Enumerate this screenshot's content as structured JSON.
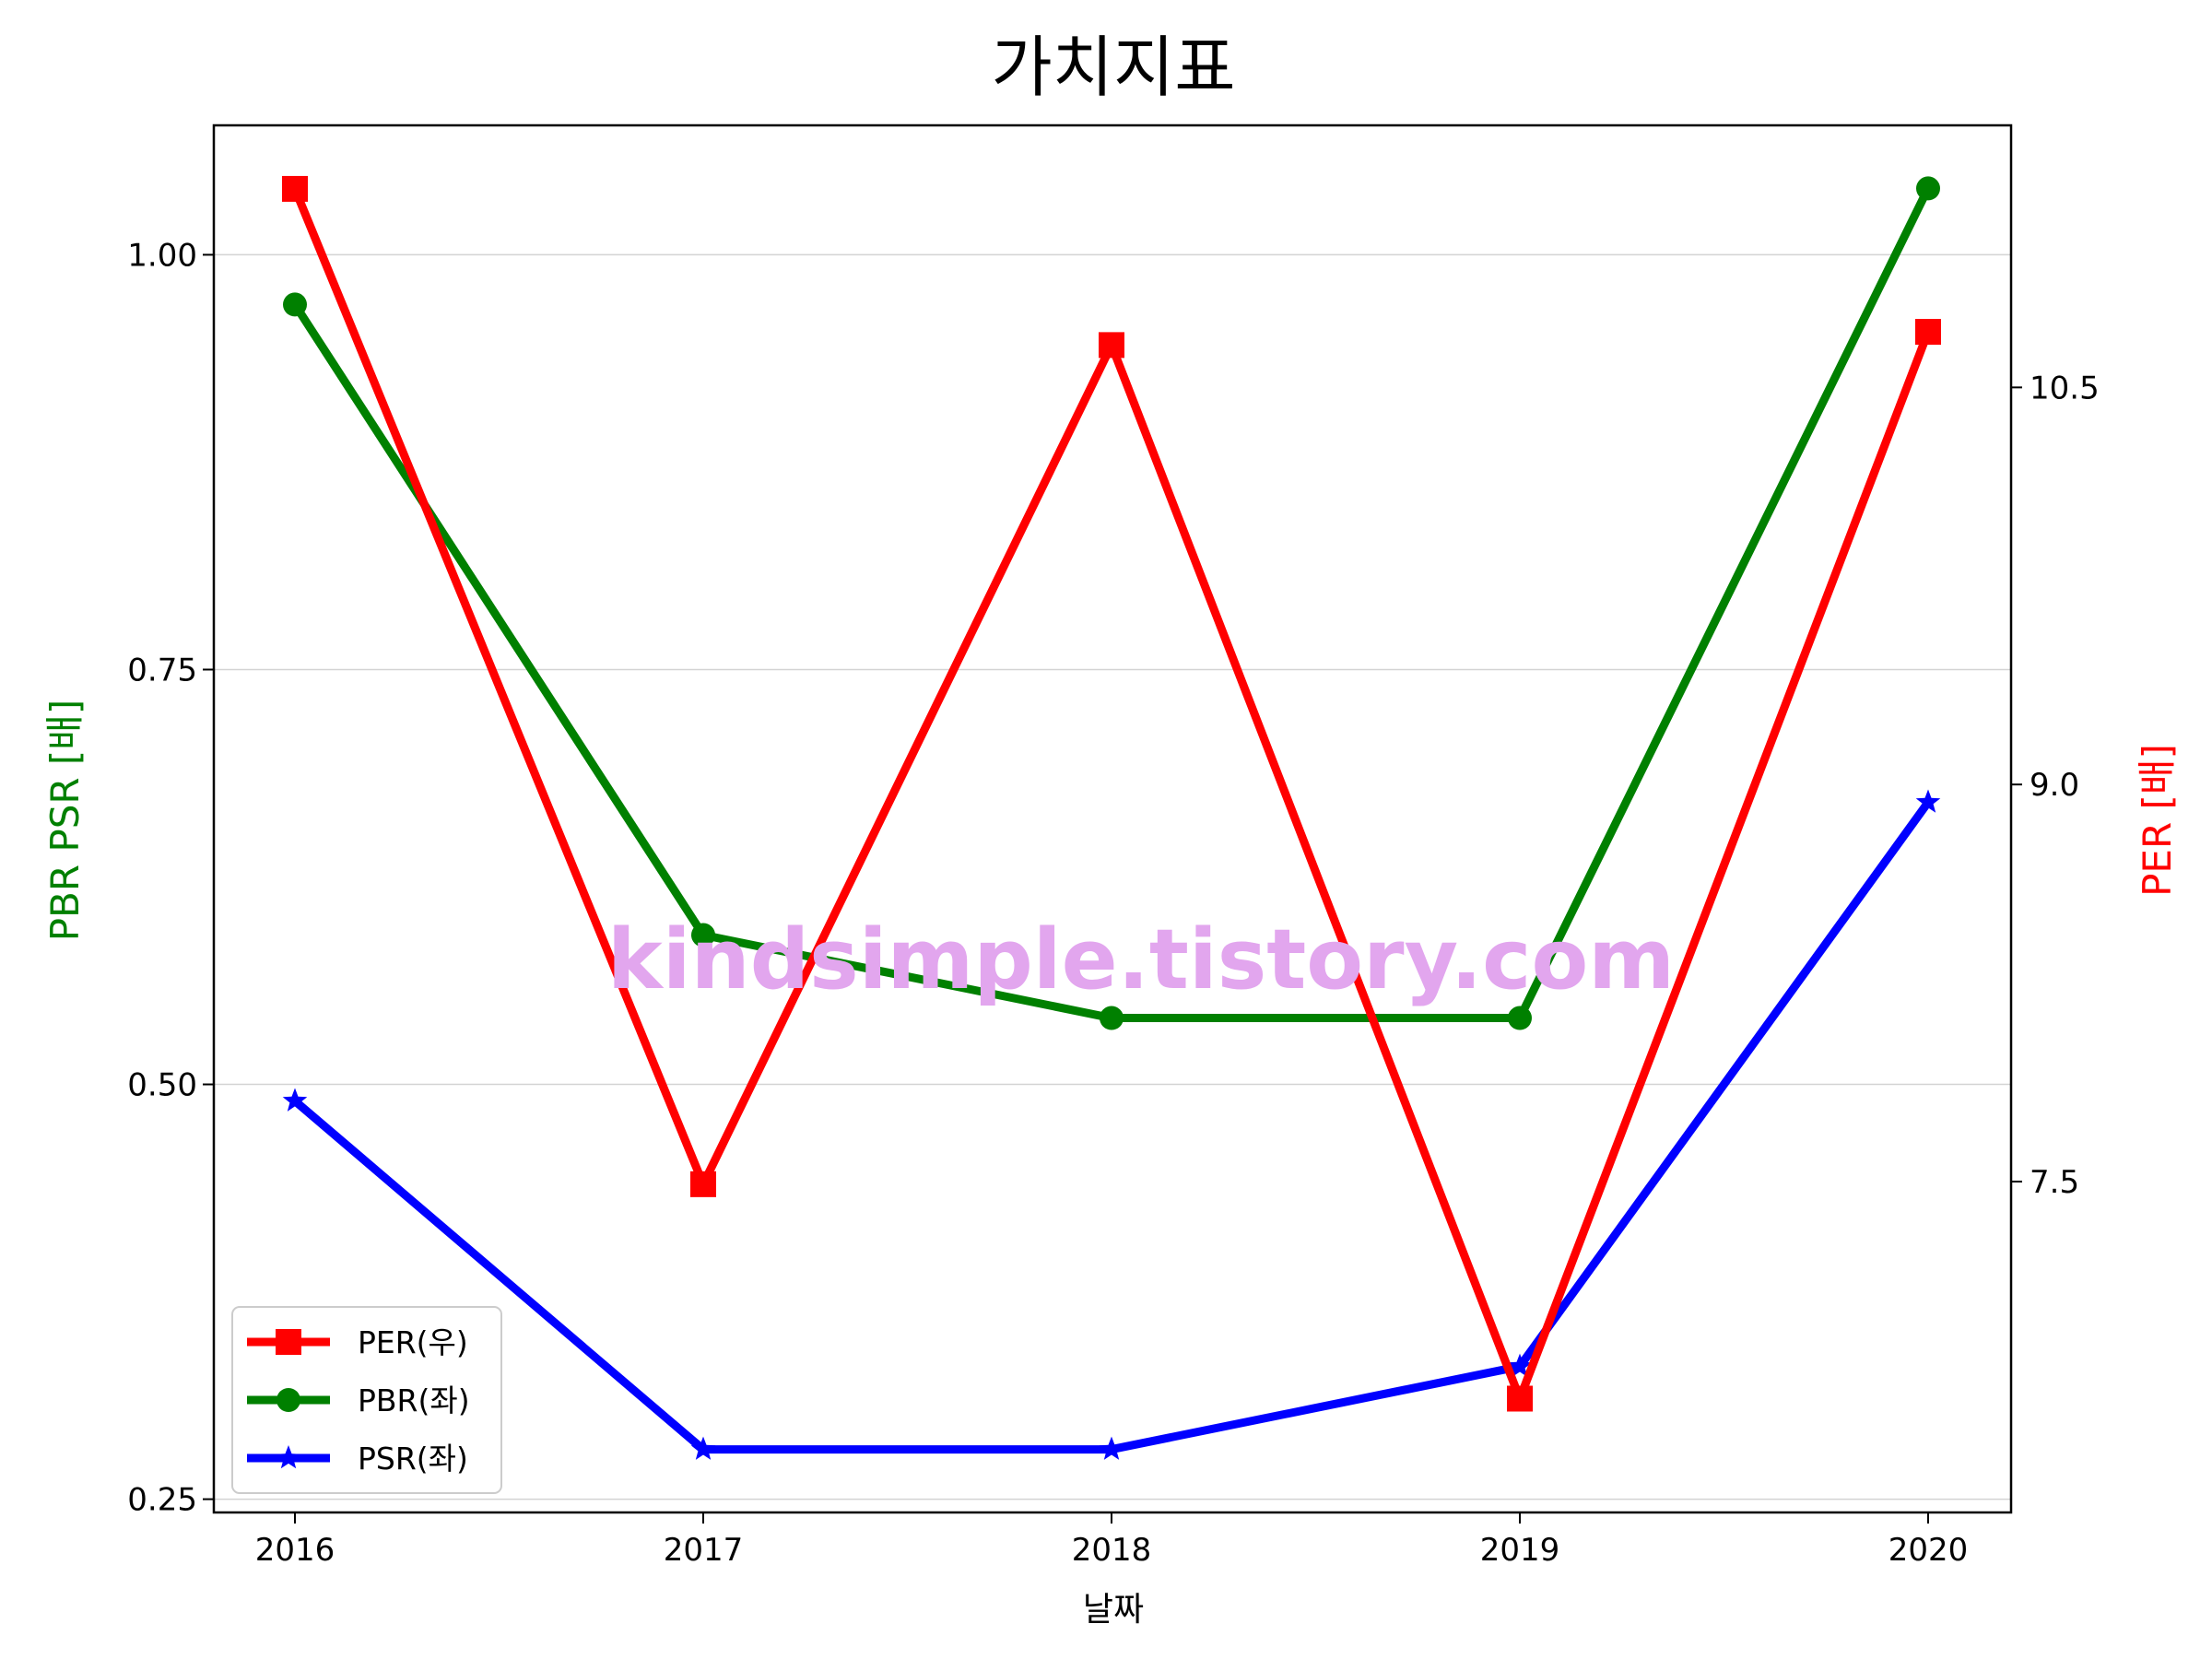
{
  "chart_data": {
    "type": "line",
    "title": "가치지표",
    "xlabel": "날짜",
    "ylabel_left": "PBR PSR [배]",
    "ylabel_right": "PER [배]",
    "categories": [
      "2016",
      "2017",
      "2018",
      "2019",
      "2020"
    ],
    "left_axis": {
      "ylim": [
        0.242,
        1.078
      ],
      "ticks": [
        0.25,
        0.5,
        0.75,
        1.0
      ],
      "tick_labels": [
        "0.25",
        "0.50",
        "0.75",
        "1.00"
      ]
    },
    "right_axis": {
      "ylim": [
        6.25,
        11.49
      ],
      "ticks": [
        7.5,
        9.0,
        10.5
      ],
      "tick_labels": [
        "7.5",
        "9.0",
        "10.5"
      ]
    },
    "series": [
      {
        "name": "PER(우)",
        "axis": "right",
        "color": "#ff0000",
        "marker": "square",
        "values": [
          11.25,
          7.49,
          10.66,
          6.68,
          10.71
        ]
      },
      {
        "name": "PBR(좌)",
        "axis": "left",
        "color": "#008000",
        "marker": "circle",
        "values": [
          0.97,
          0.59,
          0.54,
          0.54,
          1.04
        ]
      },
      {
        "name": "PSR(좌)",
        "axis": "left",
        "color": "#0000ff",
        "marker": "star",
        "values": [
          0.49,
          0.28,
          0.28,
          0.33,
          0.67
        ]
      }
    ],
    "grid": "horizontal",
    "legend_position": "lower-left",
    "watermark": "kindsimple.tistory.com",
    "watermark_color": "#e2a6ee"
  }
}
